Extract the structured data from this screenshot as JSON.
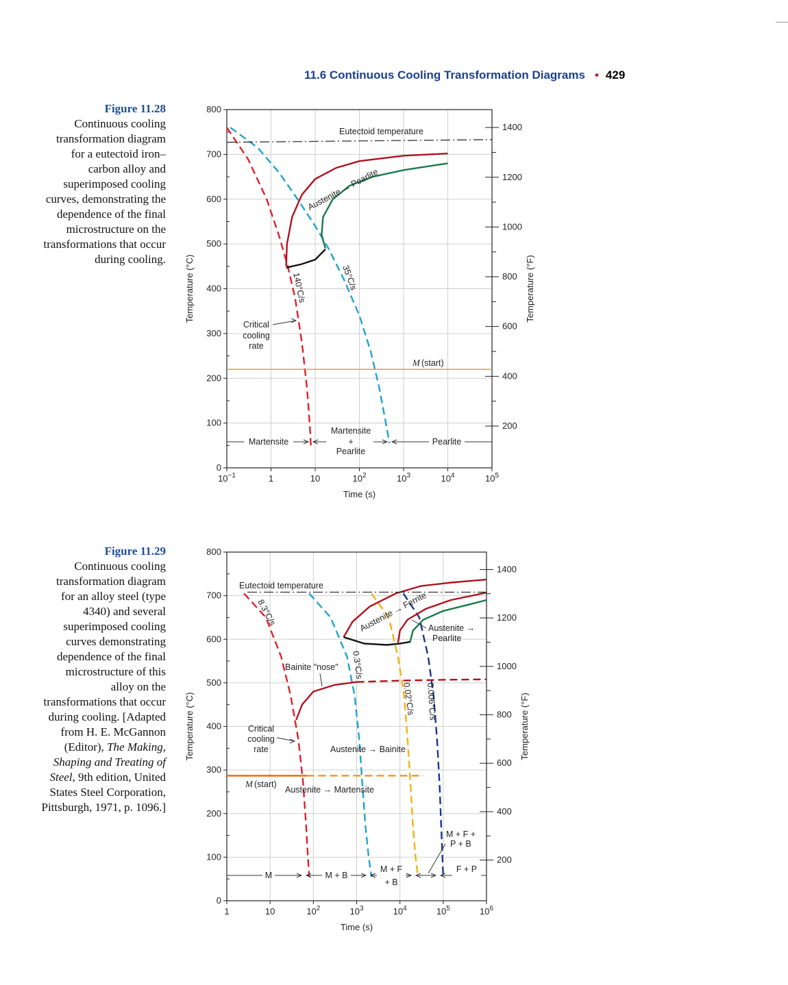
{
  "header": {
    "section": "11.6 Continuous Cooling Transformation Diagrams",
    "page_number": "429"
  },
  "captions": [
    {
      "label": "Figure 11.28",
      "text": "Continuous cooling transformation diagram for a eutectoid iron–carbon alloy and superimposed cooling curves, demonstrating the dependence of the final microstructure on the transformations that occur during cooling."
    },
    {
      "label": "Figure 11.29",
      "text_parts": [
        "Continuous cooling transformation diagram for an alloy steel (type 4340) and several superimposed cooling curves demonstrating dependence of the final microstructure of this alloy on the transformations that occur during cooling. [Adapted from H. E. McGannon (Editor), ",
        "The Making, Shaping and Treating of Steel",
        ", 9th edition, United States Steel Corporation, Pittsburgh, 1971, p. 1096.]"
      ]
    }
  ],
  "chart_data": [
    {
      "type": "line",
      "x_scale": "log",
      "xlim": [
        0.1,
        100000
      ],
      "ylim": [
        0,
        800
      ],
      "x_ticks": [
        {
          "v": 0.1,
          "base": "10",
          "exp": "−1"
        },
        {
          "v": 1,
          "base": "1",
          "exp": ""
        },
        {
          "v": 10,
          "base": "10",
          "exp": ""
        },
        {
          "v": 100,
          "base": "10",
          "exp": "2"
        },
        {
          "v": 1000,
          "base": "10",
          "exp": "3"
        },
        {
          "v": 10000,
          "base": "10",
          "exp": "4"
        },
        {
          "v": 100000,
          "base": "10",
          "exp": "5"
        }
      ],
      "y_ticks": [
        0,
        100,
        200,
        300,
        400,
        500,
        600,
        700,
        800
      ],
      "y2_ticks": [
        {
          "label": "200",
          "c": 93.3
        },
        {
          "label": "400",
          "c": 204.4
        },
        {
          "label": "600",
          "c": 315.6
        },
        {
          "label": "800",
          "c": 426.7
        },
        {
          "label": "1000",
          "c": 537.8
        },
        {
          "label": "1200",
          "c": 648.9
        },
        {
          "label": "1400",
          "c": 760
        }
      ],
      "xlabel": "Time (s)",
      "ylabel": "Temperature (°C)",
      "y2label": "Temperature (°F)",
      "grid": true,
      "series": [
        {
          "name": "140°C/s",
          "color": "#e0202a",
          "style": "dashed",
          "points": [
            [
              0.1,
              760
            ],
            [
              0.3,
              690
            ],
            [
              0.8,
              600
            ],
            [
              1.5,
              520
            ],
            [
              2.4,
              450
            ],
            [
              3.5,
              380
            ],
            [
              5,
              280
            ],
            [
              6.5,
              180
            ],
            [
              7.5,
              100
            ],
            [
              8,
              50
            ]
          ]
        },
        {
          "name": "35°C/s",
          "color": "#1fa3cf",
          "style": "dashed",
          "points": [
            [
              0.12,
              760
            ],
            [
              0.5,
              715
            ],
            [
              1.5,
              660
            ],
            [
              4,
              600
            ],
            [
              10,
              540
            ],
            [
              20,
              490
            ],
            [
              45,
              420
            ],
            [
              100,
              340
            ],
            [
              180,
              260
            ],
            [
              280,
              180
            ],
            [
              380,
              110
            ],
            [
              480,
              55
            ]
          ]
        },
        {
          "name": "Austenite → Pearlite start",
          "color": "#b0121e",
          "style": "solid",
          "points": [
            [
              2.2,
              450
            ],
            [
              2.3,
              500
            ],
            [
              3,
              560
            ],
            [
              5,
              610
            ],
            [
              10,
              645
            ],
            [
              30,
              670
            ],
            [
              100,
              685
            ],
            [
              1000,
              697
            ],
            [
              10000,
              702
            ]
          ]
        },
        {
          "name": "Austenite → Pearlite finish",
          "color": "#177a47",
          "style": "solid",
          "points": [
            [
              17,
              490
            ],
            [
              14,
              520
            ],
            [
              15,
              560
            ],
            [
              25,
              600
            ],
            [
              60,
              630
            ],
            [
              200,
              650
            ],
            [
              1000,
              665
            ],
            [
              10000,
              680
            ]
          ]
        },
        {
          "name": "",
          "color": "#111111",
          "style": "solid",
          "points": [
            [
              2.2,
              447
            ],
            [
              5,
              455
            ],
            [
              10,
              465
            ],
            [
              17,
              488
            ]
          ]
        },
        {
          "name": "Eutectoid temperature",
          "color": "#333333",
          "style": "dashdot",
          "points": [
            [
              0.1,
              727
            ],
            [
              100000,
              733
            ]
          ]
        },
        {
          "name": "M (start)",
          "color": "#f0921e",
          "style": "solid",
          "points": [
            [
              0.1,
              220
            ],
            [
              100000,
              220
            ]
          ]
        }
      ],
      "annotations": {
        "eutectoid": "Eutectoid temperature",
        "austenite_pearlite": "Austenite → Pearlite",
        "rate_140": "140°C/s",
        "rate_35": "35°C/s",
        "critical": [
          "Critical",
          "cooling",
          "rate"
        ],
        "mstart_m": "M",
        "mstart_rest": " (start)",
        "martensite": "Martensite",
        "mart_pearl": [
          "Martensite",
          "+",
          "Pearlite"
        ],
        "pearlite": "Pearlite"
      }
    },
    {
      "type": "line",
      "x_scale": "log",
      "xlim": [
        1,
        1000000
      ],
      "ylim": [
        0,
        800
      ],
      "x_ticks": [
        {
          "v": 1,
          "base": "1",
          "exp": ""
        },
        {
          "v": 10,
          "base": "10",
          "exp": ""
        },
        {
          "v": 100,
          "base": "10",
          "exp": "2"
        },
        {
          "v": 1000,
          "base": "10",
          "exp": "3"
        },
        {
          "v": 10000,
          "base": "10",
          "exp": "4"
        },
        {
          "v": 100000,
          "base": "10",
          "exp": "5"
        },
        {
          "v": 1000000,
          "base": "10",
          "exp": "6"
        }
      ],
      "y_ticks": [
        0,
        100,
        200,
        300,
        400,
        500,
        600,
        700,
        800
      ],
      "y2_ticks": [
        {
          "label": "200",
          "c": 93.3
        },
        {
          "label": "400",
          "c": 204.4
        },
        {
          "label": "600",
          "c": 315.6
        },
        {
          "label": "800",
          "c": 426.7
        },
        {
          "label": "1000",
          "c": 537.8
        },
        {
          "label": "1200",
          "c": 648.9
        },
        {
          "label": "1400",
          "c": 760
        }
      ],
      "xlabel": "Time (s)",
      "ylabel": "Temperature (°C)",
      "y2label": "Temperature (°F)",
      "grid": true,
      "series": [
        {
          "name": "8.3°C/s",
          "color": "#e0202a",
          "style": "dashed",
          "points": [
            [
              2.5,
              705
            ],
            [
              8,
              650
            ],
            [
              18,
              560
            ],
            [
              30,
              470
            ],
            [
              45,
              370
            ],
            [
              58,
              270
            ],
            [
              68,
              170
            ],
            [
              75,
              100
            ],
            [
              80,
              55
            ]
          ]
        },
        {
          "name": "0.3°C/s",
          "color": "#1fa3cf",
          "style": "dashed",
          "points": [
            [
              80,
              705
            ],
            [
              250,
              650
            ],
            [
              600,
              560
            ],
            [
              900,
              470
            ],
            [
              1150,
              370
            ],
            [
              1350,
              270
            ],
            [
              1600,
              170
            ],
            [
              1900,
              100
            ],
            [
              2200,
              55
            ]
          ]
        },
        {
          "name": "0.02°C/s",
          "color": "#f5b111",
          "style": "dashed",
          "points": [
            [
              2200,
              705
            ],
            [
              5500,
              650
            ],
            [
              9000,
              560
            ],
            [
              12500,
              470
            ],
            [
              15000,
              370
            ],
            [
              17500,
              270
            ],
            [
              20000,
              170
            ],
            [
              23000,
              100
            ],
            [
              26000,
              55
            ]
          ]
        },
        {
          "name": "0.006°C/s",
          "color": "#17378f",
          "style": "dashed",
          "points": [
            [
              12000,
              705
            ],
            [
              28000,
              650
            ],
            [
              45000,
              560
            ],
            [
              60000,
              470
            ],
            [
              72000,
              370
            ],
            [
              82000,
              270
            ],
            [
              90000,
              170
            ],
            [
              96000,
              100
            ],
            [
              100000,
              55
            ]
          ]
        },
        {
          "name": "Austenite → Ferrite",
          "color": "#b0121e",
          "style": "solid",
          "points": [
            [
              500,
              605
            ],
            [
              800,
              640
            ],
            [
              2000,
              675
            ],
            [
              8000,
              705
            ],
            [
              30000,
              722
            ],
            [
              150000,
              730
            ],
            [
              1000000,
              737
            ]
          ]
        },
        {
          "name": "Austenite → Pearlite start",
          "color": "#b0121e",
          "style": "solid",
          "points": [
            [
              9000,
              592
            ],
            [
              10000,
              620
            ],
            [
              15000,
              645
            ],
            [
              40000,
              670
            ],
            [
              150000,
              690
            ],
            [
              1000000,
              707
            ]
          ]
        },
        {
          "name": "Austenite → Pearlite finish",
          "color": "#177a47",
          "style": "solid",
          "points": [
            [
              17000,
              592
            ],
            [
              20000,
              620
            ],
            [
              35000,
              645
            ],
            [
              100000,
              665
            ],
            [
              400000,
              680
            ],
            [
              1000000,
              690
            ]
          ]
        },
        {
          "name": "",
          "color": "#111111",
          "style": "solid",
          "points": [
            [
              500,
              605
            ],
            [
              1500,
              590
            ],
            [
              5000,
              587
            ],
            [
              10000,
              590
            ],
            [
              17000,
              594
            ]
          ]
        },
        {
          "name": "Bainite nose",
          "color": "#b0121e",
          "style": "solid",
          "points": [
            [
              40,
              415
            ],
            [
              55,
              450
            ],
            [
              100,
              480
            ],
            [
              300,
              495
            ],
            [
              1000,
              502
            ]
          ]
        },
        {
          "name": "",
          "color": "#b0121e",
          "style": "dashed",
          "points": [
            [
              1000,
              502
            ],
            [
              10000,
              505
            ],
            [
              100000,
              507
            ],
            [
              1000000,
              508
            ]
          ]
        },
        {
          "name": "Eutectoid temperature",
          "color": "#333333",
          "style": "dashdot",
          "points": [
            [
              3,
              708
            ],
            [
              1000000,
              708
            ]
          ]
        },
        {
          "name": "M (start)",
          "color": "#e8741a",
          "style": "solid",
          "points": [
            [
              1,
              287
            ],
            [
              70,
              287
            ]
          ]
        },
        {
          "name": "",
          "color": "#f0921e",
          "style": "dashed",
          "points": [
            [
              70,
              287
            ],
            [
              35000,
              287
            ]
          ]
        }
      ],
      "annotations": {
        "eutectoid": "Eutectoid temperature",
        "austenite_ferrite": "Austenite → Ferrite",
        "austenite_pearlite": [
          "Austenite →",
          "Pearlite"
        ],
        "rate_83": "8.3°C/s",
        "rate_03": "0.3°C/s",
        "rate_002": "0.02°C/s",
        "rate_0006": "0.006°C/s",
        "bainite_nose": "Bainite \"nose\"",
        "critical": [
          "Critical",
          "cooling",
          "rate"
        ],
        "aus_bainite": "Austenite → Bainite",
        "mstart_m": "M",
        "mstart_rest": " (start)",
        "aus_mart": "Austenite → Martensite",
        "mfpb": [
          "M + F +",
          "P + B"
        ],
        "m": "M",
        "m_b": "M + B",
        "m_f_b": [
          "M + F",
          "+ B"
        ],
        "f_p": "F + P"
      }
    }
  ]
}
